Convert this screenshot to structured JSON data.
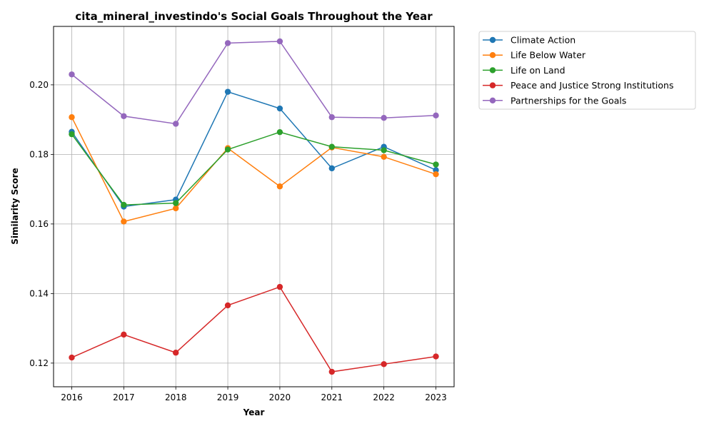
{
  "chart_data": {
    "type": "line",
    "title": "cita_mineral_investindo's Social Goals Throughout the Year",
    "xlabel": "Year",
    "ylabel": "Similarity Score",
    "x": [
      2016,
      2017,
      2018,
      2019,
      2020,
      2021,
      2022,
      2023
    ],
    "xlim": [
      2015.65,
      2023.35
    ],
    "ylim": [
      0.1132,
      0.2168
    ],
    "yticks": [
      0.12,
      0.14,
      0.16,
      0.18,
      0.2
    ],
    "ytick_labels": [
      "0.12",
      "0.14",
      "0.16",
      "0.18",
      "0.20"
    ],
    "xtick_labels": [
      "2016",
      "2017",
      "2018",
      "2019",
      "2020",
      "2021",
      "2022",
      "2023"
    ],
    "grid": true,
    "legend_position": "outside-top-right",
    "series": [
      {
        "name": "Climate Action",
        "color": "#1f77b4",
        "values": [
          0.1865,
          0.165,
          0.167,
          0.198,
          0.1932,
          0.176,
          0.1822,
          0.1755
        ]
      },
      {
        "name": "Life Below Water",
        "color": "#ff7f0e",
        "values": [
          0.1907,
          0.1607,
          0.1645,
          0.1818,
          0.1708,
          0.182,
          0.1793,
          0.1743
        ]
      },
      {
        "name": "Life on Land",
        "color": "#2ca02c",
        "values": [
          0.1858,
          0.1655,
          0.166,
          0.1814,
          0.1864,
          0.1822,
          0.1812,
          0.1771
        ]
      },
      {
        "name": "Peace and Justice Strong Institutions",
        "color": "#d62728",
        "values": [
          0.1216,
          0.1282,
          0.123,
          0.1366,
          0.1419,
          0.1175,
          0.1197,
          0.1219
        ]
      },
      {
        "name": "Partnerships for the Goals",
        "color": "#9467bd",
        "values": [
          0.203,
          0.191,
          0.1888,
          0.212,
          0.2125,
          0.1907,
          0.1905,
          0.1912
        ]
      }
    ]
  }
}
